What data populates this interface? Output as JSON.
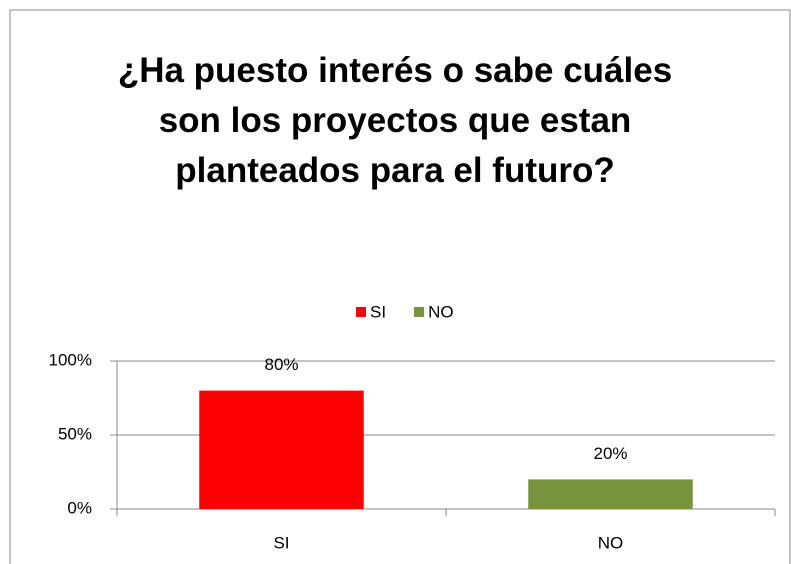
{
  "chart_data": {
    "type": "bar",
    "title": "¿Ha puesto interés o sabe cuáles son los proyectos que estan planteados para el futuro?",
    "categories": [
      "SI",
      "NO"
    ],
    "values": [
      80,
      20
    ],
    "value_labels": [
      "80%",
      "20%"
    ],
    "colors": [
      "#ff0000",
      "#77933c"
    ],
    "ylim": [
      0,
      100
    ],
    "yticks": [
      {
        "value": 0,
        "label": "0%"
      },
      {
        "value": 50,
        "label": "50%"
      },
      {
        "value": 100,
        "label": "100%"
      }
    ],
    "grid": true,
    "legend": "top"
  }
}
